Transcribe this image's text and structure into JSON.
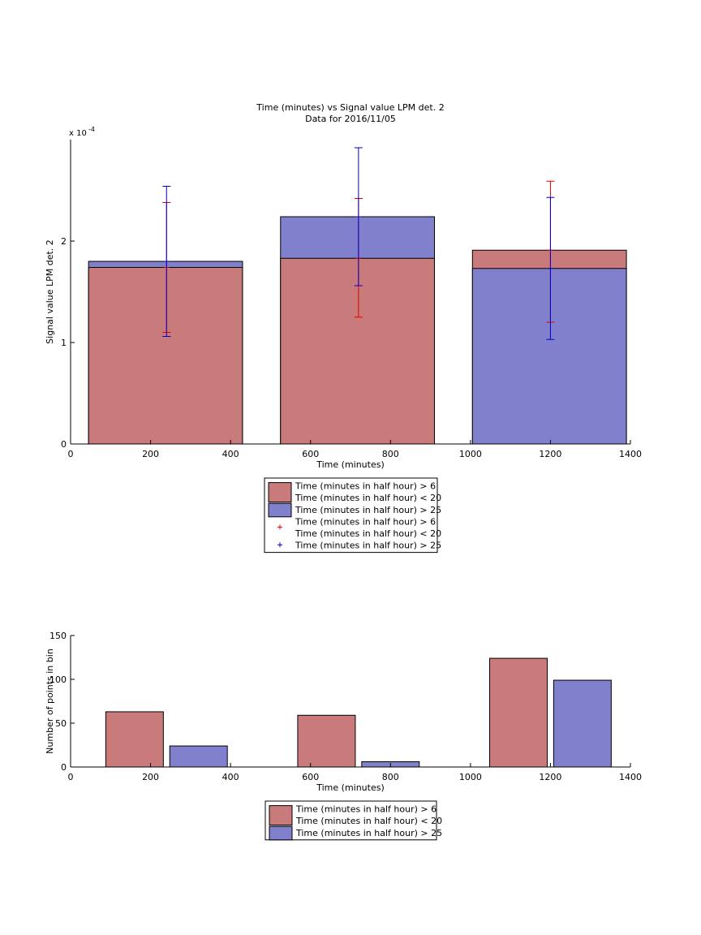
{
  "chart_data": [
    {
      "type": "bar",
      "title": "Time (minutes) vs Signal value LPM det. 2",
      "subtitle": "Data for 2016/11/05",
      "xlabel": "Time (minutes)",
      "ylabel": "Signal value LPM det. 2",
      "y_exponent_label": "x 10",
      "y_exponent_power": "-4",
      "xlim": [
        0,
        1400
      ],
      "ylim": [
        0,
        3.0
      ],
      "x_ticks": [
        0,
        200,
        400,
        600,
        800,
        1000,
        1200,
        1400
      ],
      "y_ticks": [
        0,
        1,
        2
      ],
      "grid": false,
      "legend_position": "below",
      "categories": [
        240,
        720,
        1200
      ],
      "series": [
        {
          "name": "Time (minutes in half hour) > 6\nTime (minutes in half hour) < 20",
          "color": "#c97b7b",
          "values": [
            1.74,
            1.83,
            1.91
          ],
          "error_low": [
            1.1,
            1.25,
            1.2
          ],
          "error_high": [
            2.38,
            2.42,
            2.59
          ]
        },
        {
          "name": "Time (minutes in half hour) > 25",
          "color": "#8080cc",
          "values": [
            1.8,
            2.24,
            1.73
          ],
          "error_low": [
            1.06,
            1.56,
            1.03
          ],
          "error_high": [
            2.54,
            2.92,
            2.43
          ]
        }
      ],
      "bar_spans": [
        [
          45,
          430
        ],
        [
          525,
          910
        ],
        [
          1005,
          1390
        ]
      ],
      "legend": {
        "entries": [
          {
            "kind": "patch",
            "color": "#c97b7b",
            "lines": [
              "Time (minutes in half hour) > 6",
              "Time (minutes in half hour) < 20"
            ]
          },
          {
            "kind": "patch",
            "color": "#8080cc",
            "lines": [
              "Time (minutes in half hour) > 25"
            ]
          },
          {
            "kind": "marker",
            "color": "#dd0000",
            "lines": [
              "Time (minutes in half hour) > 6",
              "Time (minutes in half hour) < 20"
            ]
          },
          {
            "kind": "marker",
            "color": "#0000cc",
            "lines": [
              "Time (minutes in half hour) > 25"
            ]
          }
        ]
      }
    },
    {
      "type": "bar",
      "title": "",
      "xlabel": "Time (minutes)",
      "ylabel": "Number of points in bin",
      "xlim": [
        0,
        1400
      ],
      "ylim": [
        0,
        150
      ],
      "x_ticks": [
        0,
        200,
        400,
        600,
        800,
        1000,
        1200,
        1400
      ],
      "y_ticks": [
        0,
        50,
        100,
        150
      ],
      "grid": false,
      "legend_position": "below",
      "series": [
        {
          "name": "Time (minutes in half hour) > 6\nTime (minutes in half hour) < 20",
          "color": "#c97b7b",
          "x": [
            160,
            640,
            1120
          ],
          "values": [
            63,
            59,
            124
          ]
        },
        {
          "name": "Time (minutes in half hour) > 25",
          "color": "#8080cc",
          "x": [
            320,
            800,
            1280
          ],
          "values": [
            24,
            6,
            99
          ]
        }
      ],
      "bar_width": 144,
      "legend": {
        "entries": [
          {
            "kind": "patch",
            "color": "#c97b7b",
            "lines": [
              "Time (minutes in half hour) > 6",
              "Time (minutes in half hour) < 20"
            ]
          },
          {
            "kind": "patch",
            "color": "#8080cc",
            "lines": [
              "Time (minutes in half hour) > 25"
            ]
          }
        ]
      }
    }
  ]
}
